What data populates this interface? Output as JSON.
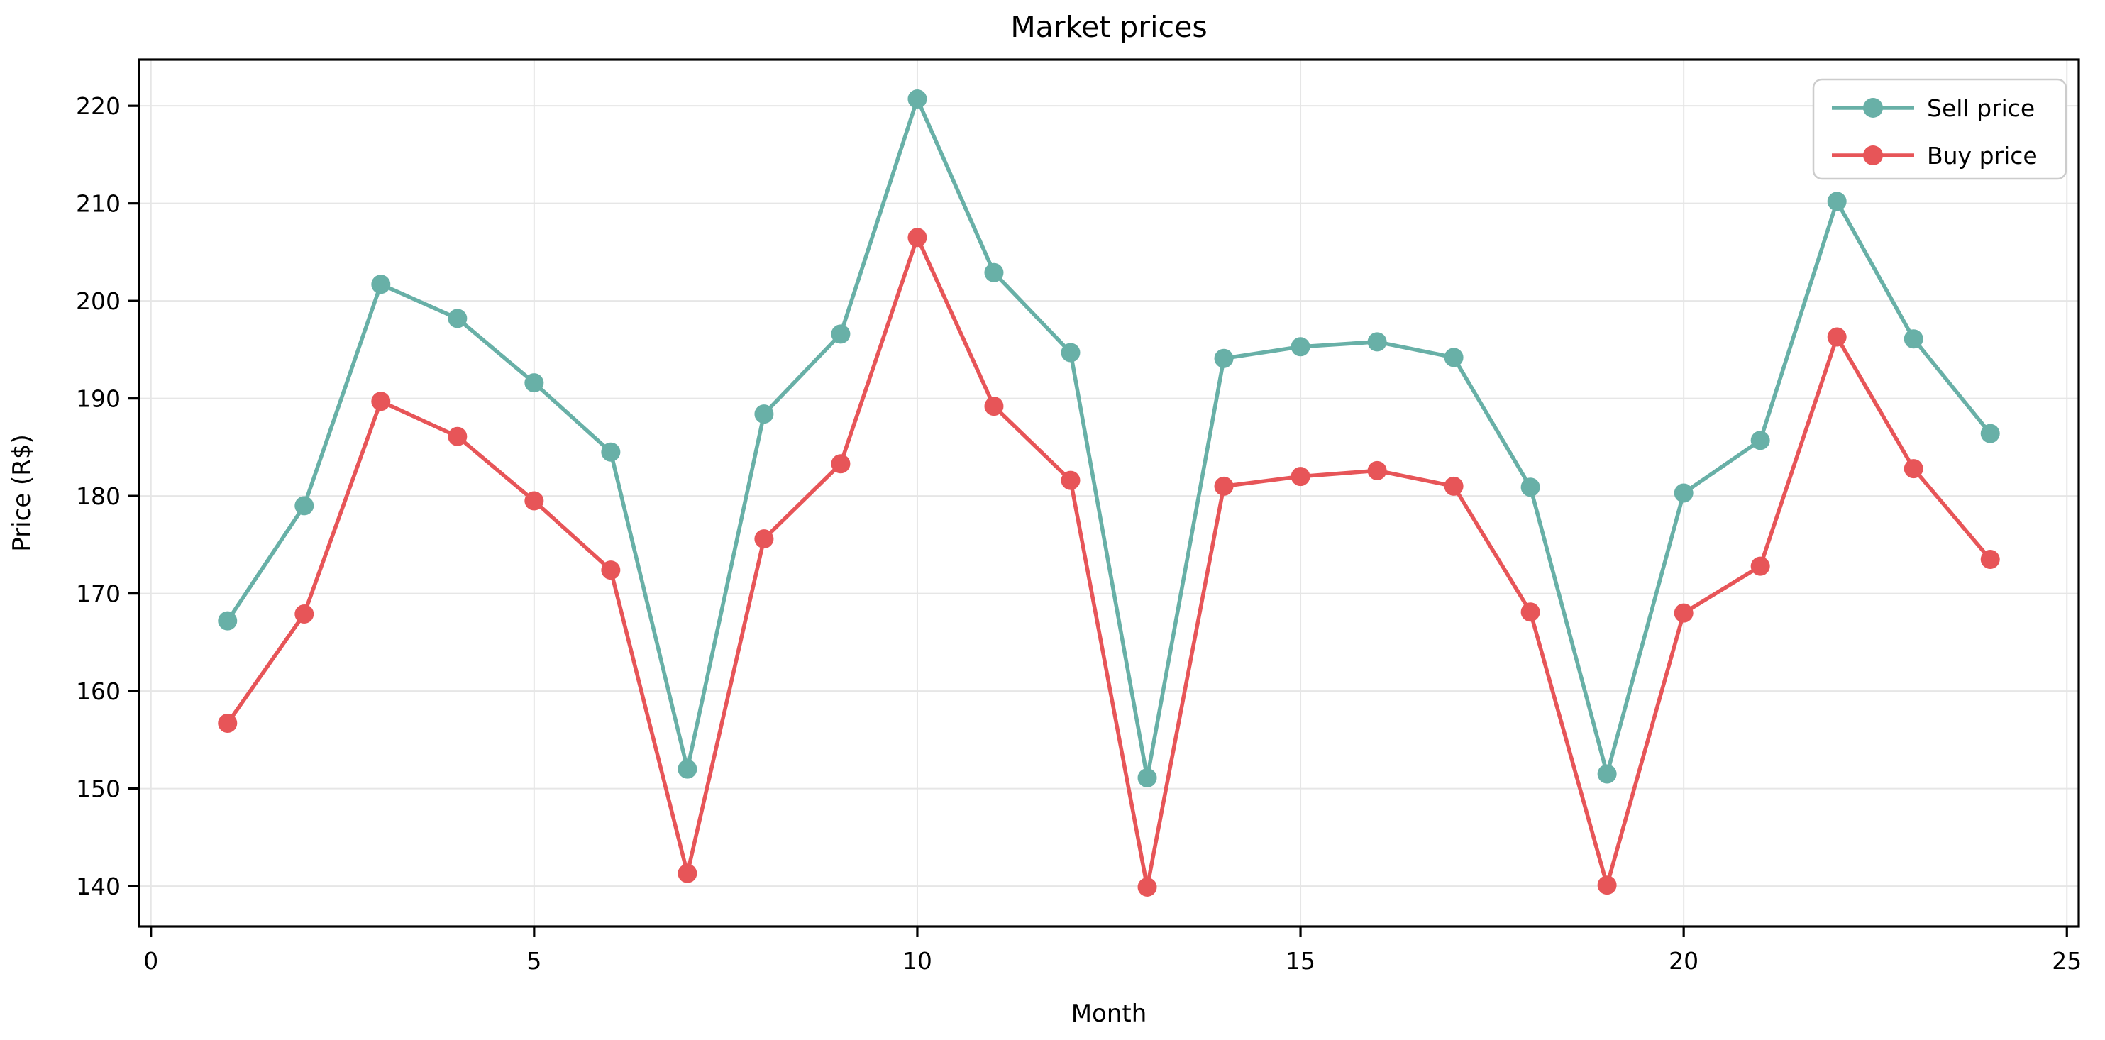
{
  "figure": {
    "title": "Market prices",
    "xlabel": "Month",
    "ylabel": "Price (R$)"
  },
  "legend": {
    "entries": [
      "Sell price",
      "Buy price"
    ]
  },
  "chart_data": {
    "type": "line",
    "title": "Market prices",
    "xlabel": "Month",
    "ylabel": "Price (R$)",
    "x": [
      1,
      2,
      3,
      4,
      5,
      6,
      7,
      8,
      9,
      10,
      11,
      12,
      13,
      14,
      15,
      16,
      17,
      18,
      19,
      20,
      21,
      22,
      23,
      24
    ],
    "series": [
      {
        "name": "Sell price",
        "color": "#68b0a7",
        "values": [
          167.2,
          179.0,
          201.7,
          198.2,
          191.6,
          184.5,
          152.0,
          188.4,
          196.6,
          220.7,
          202.9,
          194.7,
          151.1,
          194.1,
          195.3,
          195.8,
          194.2,
          180.9,
          151.5,
          180.3,
          185.7,
          210.2,
          196.1,
          186.4
        ]
      },
      {
        "name": "Buy price",
        "color": "#e75558",
        "values": [
          156.7,
          167.9,
          189.7,
          186.1,
          179.5,
          172.4,
          141.3,
          175.6,
          183.3,
          206.5,
          189.2,
          181.6,
          139.9,
          181.0,
          182.0,
          182.6,
          181.0,
          168.1,
          140.1,
          168.0,
          172.8,
          196.3,
          182.8,
          173.5
        ]
      }
    ],
    "xlim": [
      -0.155,
      25.155
    ],
    "ylim": [
      135.86,
      224.74
    ],
    "xticks": [
      0,
      5,
      10,
      15,
      20,
      25
    ],
    "yticks": [
      140,
      150,
      160,
      170,
      180,
      190,
      200,
      210,
      220
    ],
    "grid": true,
    "grid_color": "#e6e6e6",
    "spine_color": "#000000",
    "background": "#ffffff",
    "legend_position": "upper right",
    "marker": "o",
    "line_width": 5.5,
    "marker_radius": 13.5
  }
}
